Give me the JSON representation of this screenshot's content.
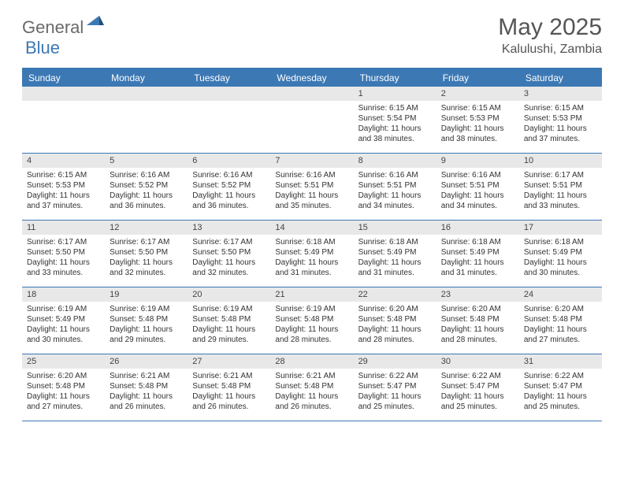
{
  "brand": {
    "name_gray": "General",
    "name_blue": "Blue"
  },
  "title": {
    "month": "May 2025",
    "location": "Kalulushi, Zambia"
  },
  "colors": {
    "accent": "#3c78b4",
    "header_text": "#ffffff",
    "daynum_bg": "#e8e8e8",
    "body_bg": "#ffffff",
    "text": "#333333",
    "logo_gray": "#6a6a6a"
  },
  "day_headers": [
    "Sunday",
    "Monday",
    "Tuesday",
    "Wednesday",
    "Thursday",
    "Friday",
    "Saturday"
  ],
  "weeks": [
    [
      null,
      null,
      null,
      null,
      {
        "n": "1",
        "sr": "6:15 AM",
        "ss": "5:54 PM",
        "dl": "11 hours and 38 minutes."
      },
      {
        "n": "2",
        "sr": "6:15 AM",
        "ss": "5:53 PM",
        "dl": "11 hours and 38 minutes."
      },
      {
        "n": "3",
        "sr": "6:15 AM",
        "ss": "5:53 PM",
        "dl": "11 hours and 37 minutes."
      }
    ],
    [
      {
        "n": "4",
        "sr": "6:15 AM",
        "ss": "5:53 PM",
        "dl": "11 hours and 37 minutes."
      },
      {
        "n": "5",
        "sr": "6:16 AM",
        "ss": "5:52 PM",
        "dl": "11 hours and 36 minutes."
      },
      {
        "n": "6",
        "sr": "6:16 AM",
        "ss": "5:52 PM",
        "dl": "11 hours and 36 minutes."
      },
      {
        "n": "7",
        "sr": "6:16 AM",
        "ss": "5:51 PM",
        "dl": "11 hours and 35 minutes."
      },
      {
        "n": "8",
        "sr": "6:16 AM",
        "ss": "5:51 PM",
        "dl": "11 hours and 34 minutes."
      },
      {
        "n": "9",
        "sr": "6:16 AM",
        "ss": "5:51 PM",
        "dl": "11 hours and 34 minutes."
      },
      {
        "n": "10",
        "sr": "6:17 AM",
        "ss": "5:51 PM",
        "dl": "11 hours and 33 minutes."
      }
    ],
    [
      {
        "n": "11",
        "sr": "6:17 AM",
        "ss": "5:50 PM",
        "dl": "11 hours and 33 minutes."
      },
      {
        "n": "12",
        "sr": "6:17 AM",
        "ss": "5:50 PM",
        "dl": "11 hours and 32 minutes."
      },
      {
        "n": "13",
        "sr": "6:17 AM",
        "ss": "5:50 PM",
        "dl": "11 hours and 32 minutes."
      },
      {
        "n": "14",
        "sr": "6:18 AM",
        "ss": "5:49 PM",
        "dl": "11 hours and 31 minutes."
      },
      {
        "n": "15",
        "sr": "6:18 AM",
        "ss": "5:49 PM",
        "dl": "11 hours and 31 minutes."
      },
      {
        "n": "16",
        "sr": "6:18 AM",
        "ss": "5:49 PM",
        "dl": "11 hours and 31 minutes."
      },
      {
        "n": "17",
        "sr": "6:18 AM",
        "ss": "5:49 PM",
        "dl": "11 hours and 30 minutes."
      }
    ],
    [
      {
        "n": "18",
        "sr": "6:19 AM",
        "ss": "5:49 PM",
        "dl": "11 hours and 30 minutes."
      },
      {
        "n": "19",
        "sr": "6:19 AM",
        "ss": "5:48 PM",
        "dl": "11 hours and 29 minutes."
      },
      {
        "n": "20",
        "sr": "6:19 AM",
        "ss": "5:48 PM",
        "dl": "11 hours and 29 minutes."
      },
      {
        "n": "21",
        "sr": "6:19 AM",
        "ss": "5:48 PM",
        "dl": "11 hours and 28 minutes."
      },
      {
        "n": "22",
        "sr": "6:20 AM",
        "ss": "5:48 PM",
        "dl": "11 hours and 28 minutes."
      },
      {
        "n": "23",
        "sr": "6:20 AM",
        "ss": "5:48 PM",
        "dl": "11 hours and 28 minutes."
      },
      {
        "n": "24",
        "sr": "6:20 AM",
        "ss": "5:48 PM",
        "dl": "11 hours and 27 minutes."
      }
    ],
    [
      {
        "n": "25",
        "sr": "6:20 AM",
        "ss": "5:48 PM",
        "dl": "11 hours and 27 minutes."
      },
      {
        "n": "26",
        "sr": "6:21 AM",
        "ss": "5:48 PM",
        "dl": "11 hours and 26 minutes."
      },
      {
        "n": "27",
        "sr": "6:21 AM",
        "ss": "5:48 PM",
        "dl": "11 hours and 26 minutes."
      },
      {
        "n": "28",
        "sr": "6:21 AM",
        "ss": "5:48 PM",
        "dl": "11 hours and 26 minutes."
      },
      {
        "n": "29",
        "sr": "6:22 AM",
        "ss": "5:47 PM",
        "dl": "11 hours and 25 minutes."
      },
      {
        "n": "30",
        "sr": "6:22 AM",
        "ss": "5:47 PM",
        "dl": "11 hours and 25 minutes."
      },
      {
        "n": "31",
        "sr": "6:22 AM",
        "ss": "5:47 PM",
        "dl": "11 hours and 25 minutes."
      }
    ]
  ],
  "labels": {
    "sunrise": "Sunrise:",
    "sunset": "Sunset:",
    "daylight": "Daylight:"
  }
}
